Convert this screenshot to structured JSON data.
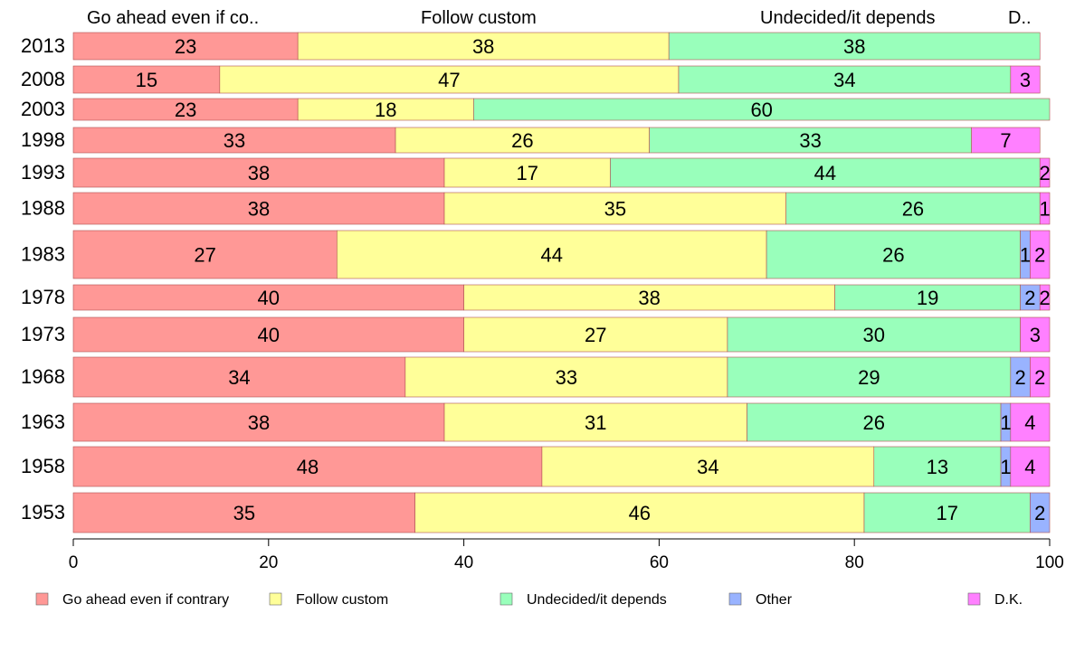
{
  "chart_data": {
    "type": "bar",
    "orientation": "horizontal",
    "stacked": true,
    "categories": [
      "2013",
      "2008",
      "2003",
      "1998",
      "1993",
      "1988",
      "1983",
      "1978",
      "1973",
      "1968",
      "1963",
      "1958",
      "1953"
    ],
    "series": [
      {
        "name": "Go ahead even if contrary",
        "header_label": "Go ahead even if co..",
        "color": "#ff9896",
        "values": [
          23,
          15,
          23,
          33,
          38,
          38,
          27,
          40,
          40,
          34,
          38,
          48,
          35
        ]
      },
      {
        "name": "Follow custom",
        "header_label": "Follow custom",
        "color": "#ffff99",
        "values": [
          38,
          47,
          18,
          26,
          17,
          35,
          44,
          38,
          27,
          33,
          31,
          34,
          46
        ]
      },
      {
        "name": "Undecided/it depends",
        "header_label": "Undecided/it depends",
        "color": "#99ffbb",
        "values": [
          38,
          34,
          60,
          33,
          44,
          26,
          26,
          19,
          30,
          29,
          26,
          13,
          17
        ]
      },
      {
        "name": "Other",
        "header_label": "",
        "color": "#99b3ff",
        "values": [
          0,
          0,
          0,
          0,
          0,
          0,
          1,
          2,
          0,
          2,
          1,
          1,
          2
        ]
      },
      {
        "name": "D.K.",
        "header_label": "D..",
        "color": "#ff80ff",
        "values": [
          0,
          3,
          0,
          7,
          2,
          1,
          2,
          2,
          3,
          2,
          4,
          4,
          0
        ]
      }
    ],
    "x_ticks": [
      0,
      20,
      40,
      60,
      80,
      100
    ],
    "xlim": [
      0,
      100
    ],
    "grid": false,
    "legend_position": "bottom",
    "title": "",
    "xlabel": "",
    "ylabel": ""
  }
}
